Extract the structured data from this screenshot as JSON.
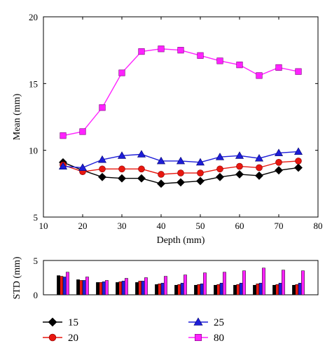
{
  "chart_data": [
    {
      "type": "line",
      "xlabel": "Depth (mm)",
      "ylabel": "Mean (mm)",
      "xlim": [
        10,
        80
      ],
      "ylim": [
        5,
        20
      ],
      "xticks": [
        "10",
        "20",
        "30",
        "40",
        "50",
        "60",
        "70",
        "80"
      ],
      "yticks": [
        "5",
        "10",
        "15",
        "20"
      ],
      "x": [
        15,
        20,
        25,
        30,
        35,
        40,
        45,
        50,
        55,
        60,
        65,
        70,
        75
      ],
      "series": [
        {
          "name": "15",
          "color": "#000000",
          "marker": "diamond",
          "values": [
            9.1,
            8.5,
            8.0,
            7.9,
            7.9,
            7.5,
            7.6,
            7.7,
            8.0,
            8.2,
            8.1,
            8.5,
            8.7
          ]
        },
        {
          "name": "20",
          "color": "#e8170f",
          "marker": "circle",
          "values": [
            8.9,
            8.4,
            8.6,
            8.6,
            8.6,
            8.2,
            8.3,
            8.3,
            8.6,
            8.8,
            8.7,
            9.1,
            9.2
          ]
        },
        {
          "name": "25",
          "color": "#1d1dd8",
          "marker": "triangle",
          "values": [
            8.8,
            8.7,
            9.3,
            9.6,
            9.7,
            9.2,
            9.2,
            9.1,
            9.5,
            9.6,
            9.4,
            9.8,
            9.9
          ]
        },
        {
          "name": "80",
          "color": "#ff22ff",
          "marker": "square",
          "values": [
            11.1,
            11.4,
            13.2,
            15.8,
            17.4,
            17.6,
            17.5,
            17.1,
            16.7,
            16.4,
            15.6,
            16.2,
            15.9
          ]
        }
      ],
      "grid": false
    },
    {
      "type": "bar",
      "ylabel": "STD (mm)",
      "ylim": [
        0,
        5
      ],
      "yticks": [
        "0",
        "5"
      ],
      "x": [
        15,
        20,
        25,
        30,
        35,
        40,
        45,
        50,
        55,
        60,
        65,
        70,
        75
      ],
      "series": [
        {
          "name": "15",
          "color": "#000000",
          "values": [
            2.8,
            2.2,
            1.8,
            1.8,
            1.8,
            1.5,
            1.4,
            1.4,
            1.4,
            1.4,
            1.4,
            1.4,
            1.4
          ]
        },
        {
          "name": "20",
          "color": "#e8170f",
          "values": [
            2.7,
            2.1,
            1.8,
            1.9,
            2.0,
            1.6,
            1.5,
            1.5,
            1.5,
            1.5,
            1.6,
            1.5,
            1.5
          ]
        },
        {
          "name": "25",
          "color": "#1d1dd8",
          "values": [
            2.6,
            2.1,
            1.9,
            2.0,
            2.0,
            1.7,
            1.7,
            1.6,
            1.7,
            1.7,
            1.7,
            1.7,
            1.7
          ]
        },
        {
          "name": "80",
          "color": "#ff22ff",
          "values": [
            3.3,
            2.6,
            2.1,
            2.4,
            2.5,
            2.7,
            2.9,
            3.2,
            3.3,
            3.5,
            3.9,
            3.6,
            3.5
          ]
        }
      ]
    }
  ],
  "legend": {
    "placement": "bottom",
    "entries": [
      {
        "label": "15",
        "color": "#000000",
        "marker": "diamond"
      },
      {
        "label": "25",
        "color": "#1d1dd8",
        "marker": "triangle"
      },
      {
        "label": "20",
        "color": "#e8170f",
        "marker": "circle"
      },
      {
        "label": "80",
        "color": "#ff22ff",
        "marker": "square"
      }
    ]
  }
}
